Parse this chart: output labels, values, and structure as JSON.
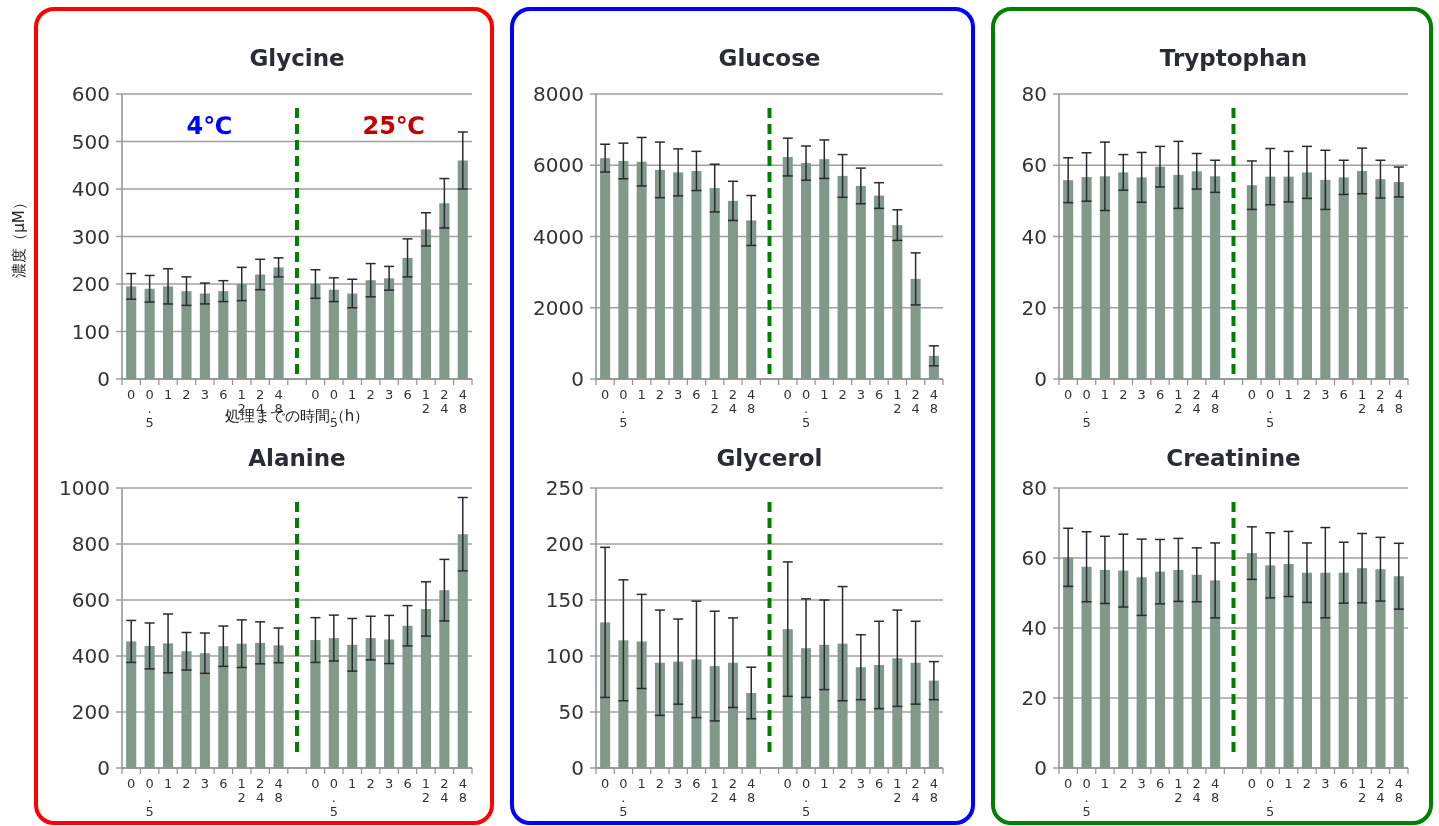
{
  "chart_data": [
    {
      "type": "bar",
      "title": "Glycine",
      "ylabel": "濃度（μM）",
      "xlabel": "処理までの時間（h）",
      "annotations": [
        "4℃",
        "25℃"
      ],
      "categories": [
        "0",
        "0.5",
        "1",
        "2",
        "3",
        "6",
        "12",
        "24",
        "48",
        null,
        "0",
        "0.5",
        "1",
        "2",
        "3",
        "6",
        "12",
        "24",
        "48"
      ],
      "values": [
        195,
        190,
        195,
        185,
        180,
        185,
        200,
        220,
        235,
        null,
        200,
        188,
        180,
        208,
        212,
        255,
        315,
        370,
        460
      ],
      "errors": [
        27,
        28,
        37,
        30,
        22,
        22,
        35,
        32,
        20,
        null,
        30,
        25,
        30,
        35,
        25,
        40,
        35,
        52,
        60
      ],
      "color": "#80998b",
      "ylim": [
        0,
        600
      ],
      "yticks": [
        0,
        100,
        200,
        300,
        400,
        500,
        600
      ],
      "grid": "y"
    },
    {
      "type": "bar",
      "title": "Glucose",
      "categories": [
        "0",
        "0.5",
        "1",
        "2",
        "3",
        "6",
        "12",
        "24",
        "48",
        null,
        "0",
        "0.5",
        "1",
        "2",
        "3",
        "6",
        "12",
        "24",
        "48"
      ],
      "values": [
        6200,
        6120,
        6100,
        5870,
        5800,
        5840,
        5360,
        5000,
        4450,
        null,
        6230,
        6060,
        6170,
        5700,
        5420,
        5150,
        4320,
        2810,
        650
      ],
      "errors": [
        390,
        500,
        680,
        780,
        660,
        550,
        670,
        550,
        700,
        null,
        530,
        480,
        540,
        600,
        500,
        360,
        430,
        730,
        280
      ],
      "color": "#80998b",
      "ylim": [
        0,
        8000
      ],
      "yticks": [
        0,
        2000,
        4000,
        6000,
        8000
      ],
      "grid": "y"
    },
    {
      "type": "bar",
      "title": "Tryptophan",
      "categories": [
        "0",
        "0.5",
        "1",
        "2",
        "3",
        "6",
        "12",
        "24",
        "48",
        null,
        "0",
        "0.5",
        "1",
        "2",
        "3",
        "6",
        "12",
        "24",
        "48"
      ],
      "values": [
        55.8,
        56.7,
        56.9,
        58,
        56.6,
        59.6,
        57.3,
        58.3,
        56.9,
        null,
        54.4,
        56.8,
        56.8,
        58,
        55.9,
        56.6,
        58.4,
        56.1,
        55.3
      ],
      "errors": [
        6.3,
        6.8,
        9.6,
        5,
        7,
        5.7,
        9.4,
        5,
        4.5,
        null,
        6.8,
        7.9,
        7.1,
        7.3,
        8.3,
        4.8,
        6.4,
        5.3,
        4.2
      ],
      "color": "#80998b",
      "ylim": [
        0,
        80
      ],
      "yticks": [
        0,
        20,
        40,
        60,
        80
      ],
      "grid": "y"
    },
    {
      "type": "bar",
      "title": "Alanine",
      "categories": [
        "0",
        "0.5",
        "1",
        "2",
        "3",
        "6",
        "12",
        "24",
        "48",
        null,
        "0",
        "0.5",
        "1",
        "2",
        "3",
        "6",
        "12",
        "24",
        "48"
      ],
      "values": [
        452,
        436,
        445,
        417,
        410,
        435,
        444,
        447,
        438,
        null,
        457,
        464,
        440,
        464,
        459,
        508,
        568,
        635,
        835
      ],
      "errors": [
        75,
        82,
        105,
        67,
        72,
        72,
        85,
        75,
        62,
        null,
        80,
        82,
        94,
        78,
        86,
        72,
        97,
        110,
        131
      ],
      "color": "#80998b",
      "ylim": [
        0,
        1000
      ],
      "yticks": [
        0,
        200,
        400,
        600,
        800,
        1000
      ],
      "grid": "y"
    },
    {
      "type": "bar",
      "title": "Glycerol",
      "categories": [
        "0",
        "0.5",
        "1",
        "2",
        "3",
        "6",
        "12",
        "24",
        "48",
        null,
        "0",
        "0.5",
        "1",
        "2",
        "3",
        "6",
        "12",
        "24",
        "48"
      ],
      "values": [
        130,
        114,
        113,
        94,
        95,
        97,
        91,
        94,
        67,
        null,
        124,
        107,
        110,
        111,
        90,
        92,
        98,
        94,
        78
      ],
      "errors": [
        67,
        54,
        42,
        47,
        38,
        52,
        49,
        40,
        23,
        null,
        60,
        44,
        40,
        51,
        29,
        39,
        43,
        37,
        17
      ],
      "color": "#80998b",
      "ylim": [
        0,
        250
      ],
      "yticks": [
        0,
        50,
        100,
        150,
        200,
        250
      ],
      "grid": "y"
    },
    {
      "type": "bar",
      "title": "Creatinine",
      "categories": [
        "0",
        "0.5",
        "1",
        "2",
        "3",
        "6",
        "12",
        "24",
        "48",
        null,
        "0",
        "0.5",
        "1",
        "2",
        "3",
        "6",
        "12",
        "24",
        "48"
      ],
      "values": [
        60.2,
        57.5,
        56.6,
        56.4,
        54.5,
        56.1,
        56.6,
        55.2,
        53.6,
        null,
        61.4,
        57.9,
        58.3,
        55.8,
        55.8,
        55.8,
        57.1,
        56.8,
        54.8
      ],
      "errors": [
        8.3,
        10,
        9.6,
        10.4,
        10.9,
        9.2,
        9,
        7.7,
        10.7,
        null,
        7.5,
        9.3,
        9.3,
        8.5,
        12.9,
        8.7,
        9.9,
        9.1,
        9.4
      ],
      "color": "#80998b",
      "ylim": [
        0,
        80
      ],
      "yticks": [
        0,
        20,
        40,
        60,
        80
      ],
      "grid": "y"
    }
  ]
}
